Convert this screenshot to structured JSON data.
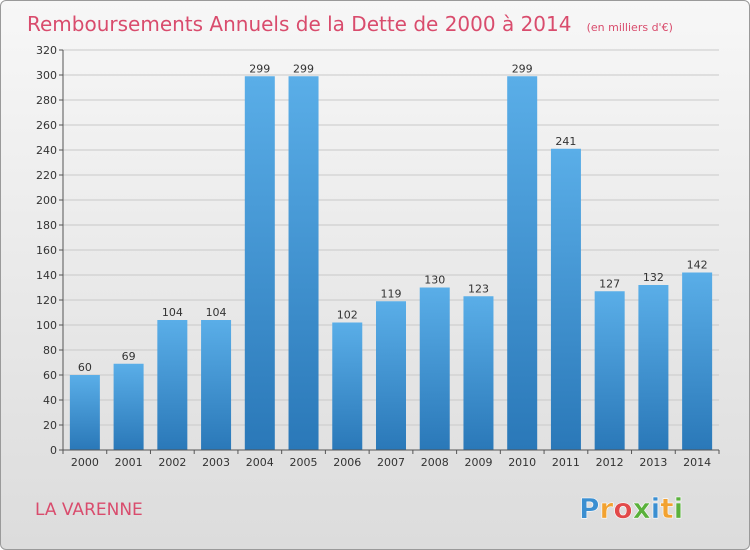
{
  "title": "Remboursements Annuels de la Dette de 2000 à 2014",
  "unit_label": "(en milliers d'€)",
  "commune": "LA VARENNE",
  "logo": {
    "letters": [
      "P",
      "r",
      "o",
      "x",
      "i",
      "t",
      "i"
    ],
    "colors": [
      "#3b8fd1",
      "#f2a230",
      "#e24a4a",
      "#5ab13c",
      "#3b8fd1",
      "#f2a230",
      "#5ab13c"
    ]
  },
  "colors": {
    "title": "#d94c6d",
    "bar_light": "#5aaee8",
    "bar_dark": "#2a78b8",
    "grid": "#c9c9c9",
    "axis": "#555555"
  },
  "chart_data": {
    "type": "bar",
    "categories": [
      "2000",
      "2001",
      "2002",
      "2003",
      "2004",
      "2005",
      "2006",
      "2007",
      "2008",
      "2009",
      "2010",
      "2011",
      "2012",
      "2013",
      "2014"
    ],
    "values": [
      60,
      69,
      104,
      104,
      299,
      299,
      102,
      119,
      130,
      123,
      299,
      241,
      127,
      132,
      142
    ],
    "ylim": [
      0,
      320
    ],
    "yticks": [
      0,
      20,
      40,
      60,
      80,
      100,
      120,
      140,
      160,
      180,
      200,
      220,
      240,
      260,
      280,
      300,
      320
    ],
    "grid": true,
    "data_labels": true
  }
}
